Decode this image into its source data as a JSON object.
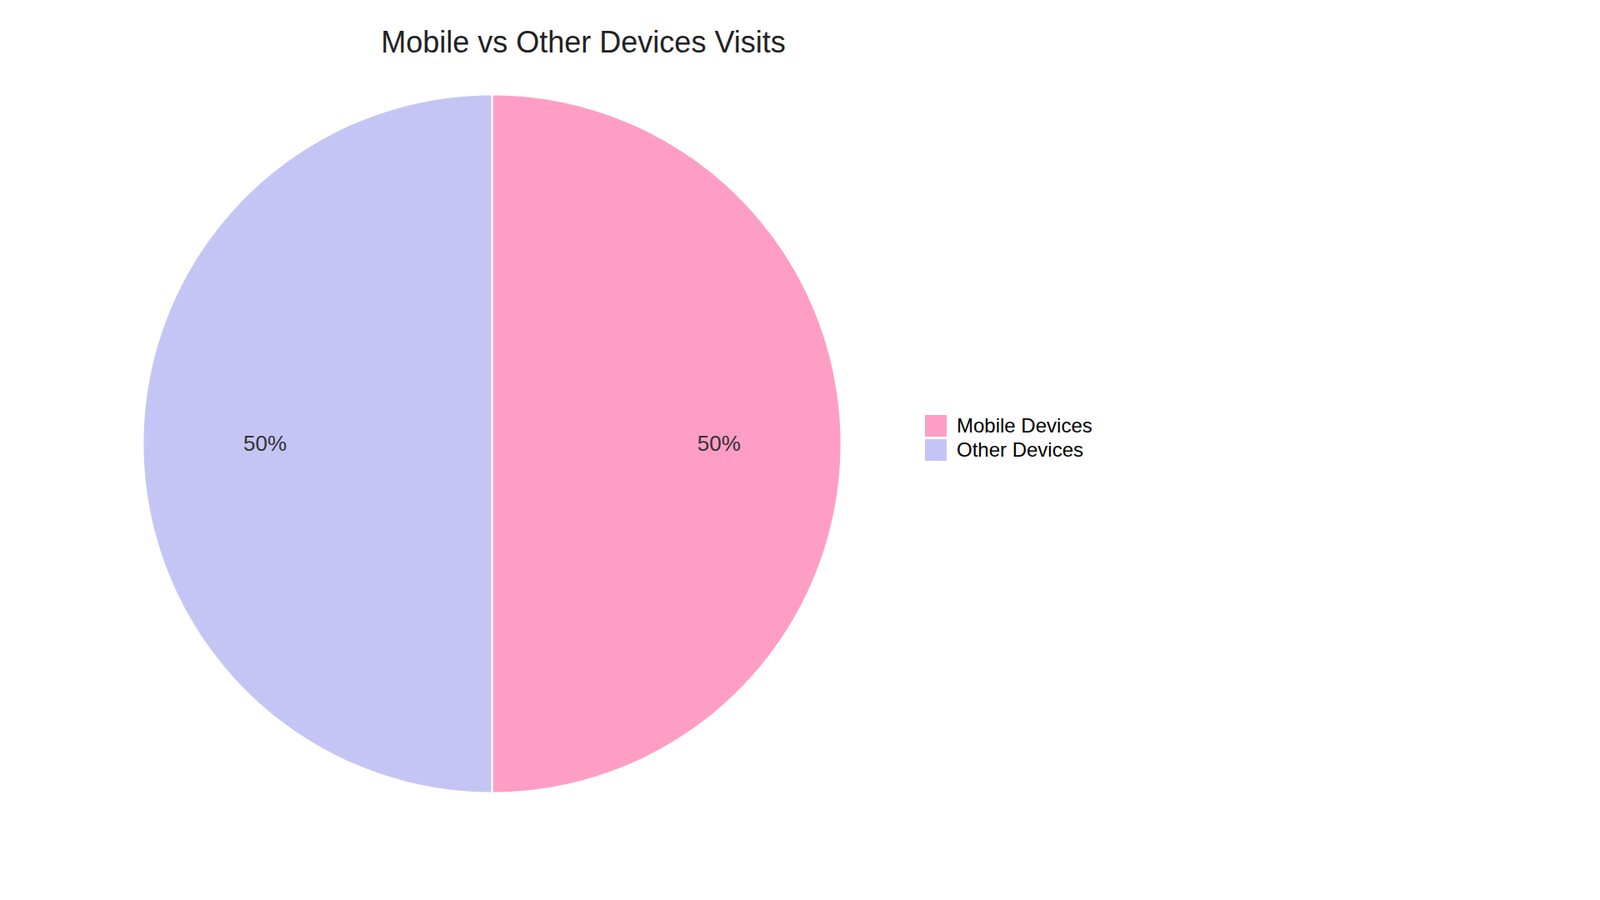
{
  "chart_data": {
    "type": "pie",
    "title": "Mobile vs Other Devices Visits",
    "categories": [
      "Mobile Devices",
      "Other Devices"
    ],
    "values": [
      50,
      50
    ],
    "value_labels": [
      "50%",
      "50%"
    ],
    "colors": [
      "#FF9EC4",
      "#C5C5F5"
    ],
    "data_labels": true,
    "legend": "right"
  }
}
